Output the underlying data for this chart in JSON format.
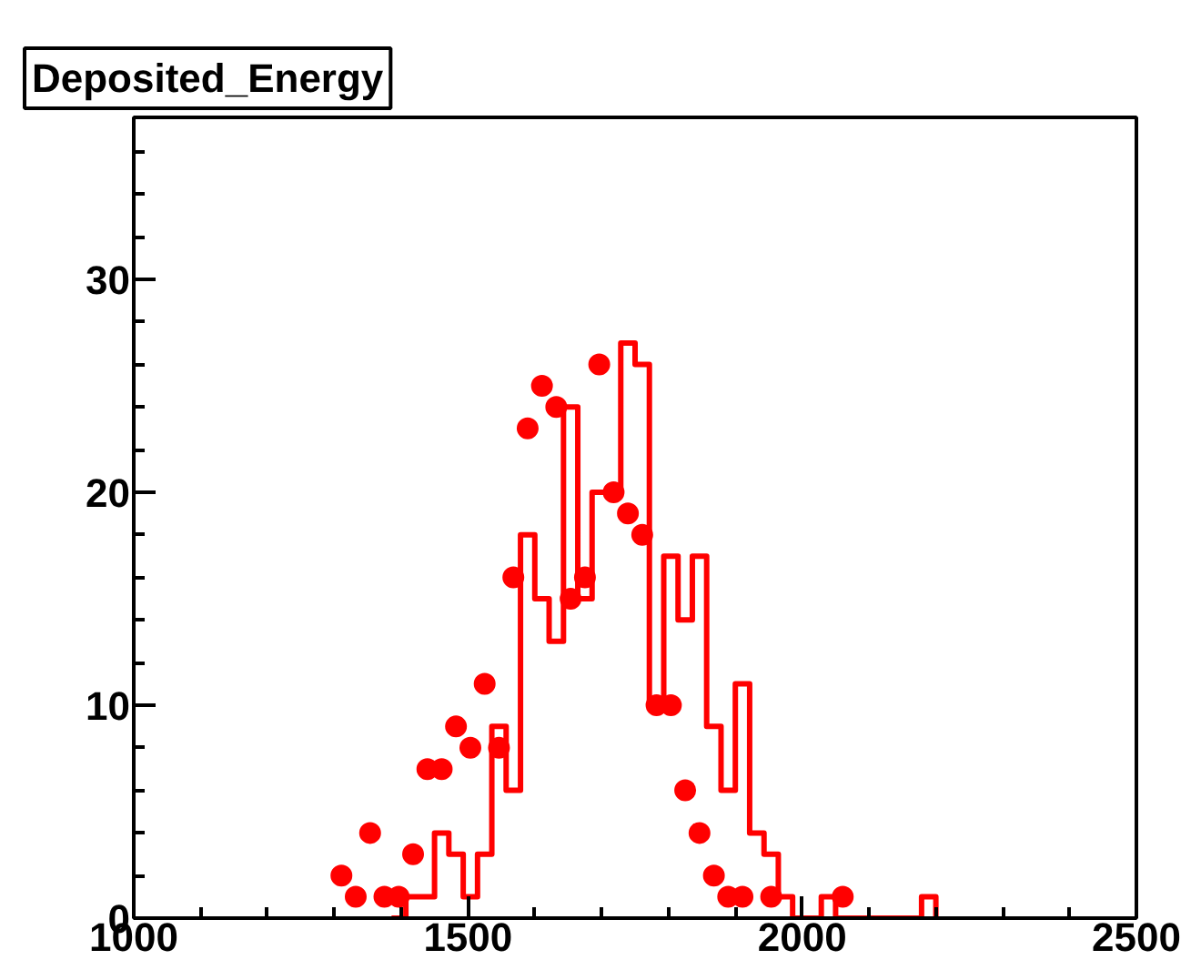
{
  "chart_data": {
    "type": "histogram",
    "title": "Deposited_Energy",
    "xlim": [
      1000,
      2500
    ],
    "ylim": [
      0,
      37.6
    ],
    "xticks": [
      1000,
      1500,
      2000,
      2500
    ],
    "yticks": [
      0,
      10,
      20,
      30
    ],
    "grid": false,
    "series": [
      {
        "color": "#ff0000",
        "bins": [
          1385.7,
          1407.1,
          1428.6,
          1450,
          1471.4,
          1492.9,
          1514.3,
          1535.7,
          1557.1,
          1578.6,
          1600,
          1621.4,
          1642.9,
          1664.3,
          1685.7,
          1707.1,
          1728.6,
          1750,
          1771.4,
          1792.9,
          1814.3,
          1835.7,
          1857.1,
          1878.6,
          1900,
          1921.4,
          1942.9,
          1964.3,
          1985.7,
          2007.1,
          2028.6,
          2050,
          2071.4,
          2092.9,
          2114.3,
          2135.7,
          2157.1,
          2178.6,
          2200
        ],
        "values": [
          0,
          1,
          1,
          4,
          3,
          1,
          3,
          9,
          6,
          18,
          15,
          13,
          24,
          15,
          20,
          20,
          27,
          26,
          10,
          17,
          14,
          17,
          9,
          6,
          11,
          4,
          3,
          1,
          0,
          0,
          1,
          0,
          0,
          0,
          0,
          0,
          0,
          1
        ]
      },
      {
        "type": "scatter",
        "marker": "circle",
        "color": "#ff0000",
        "x": [
          1310.7,
          1332.1,
          1353.6,
          1375,
          1396.4,
          1417.9,
          1439.3,
          1460.7,
          1482.1,
          1503.6,
          1525,
          1546.4,
          1567.9,
          1589.3,
          1610.7,
          1632.1,
          1653.6,
          1675,
          1696.4,
          1717.9,
          1739.3,
          1760.7,
          1782.1,
          1803.6,
          1825,
          1846.4,
          1867.9,
          1889.3,
          1910.7,
          1953.6,
          2060.7
        ],
        "values": [
          2,
          1,
          4,
          1,
          1,
          3,
          7,
          7,
          9,
          8,
          11,
          8,
          16,
          23,
          25,
          24,
          15,
          16,
          26,
          20,
          19,
          18,
          10,
          10,
          6,
          4,
          2,
          1,
          1,
          1,
          1
        ]
      }
    ]
  }
}
